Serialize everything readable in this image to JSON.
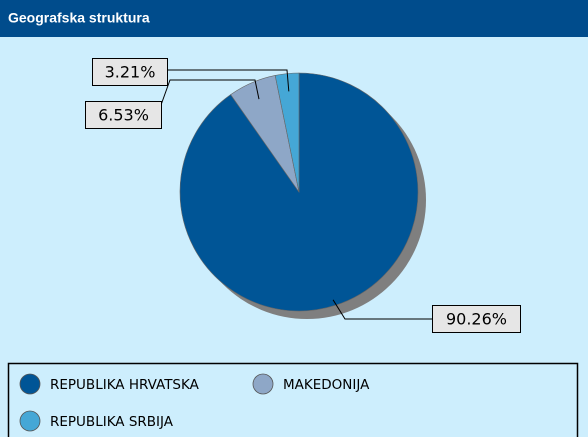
{
  "chart_data": {
    "type": "pie",
    "title": "Geografska struktura",
    "categories": [
      "REPUBLIKA HRVATSKA",
      "MAKEDONIJA",
      "REPUBLIKA SRBIJA"
    ],
    "values": [
      90.26,
      6.53,
      3.21
    ],
    "value_labels": [
      "90.26%",
      "6.53%",
      "3.21%"
    ],
    "colors": [
      "#005596",
      "#8ea7c7",
      "#45a7d6"
    ]
  }
}
